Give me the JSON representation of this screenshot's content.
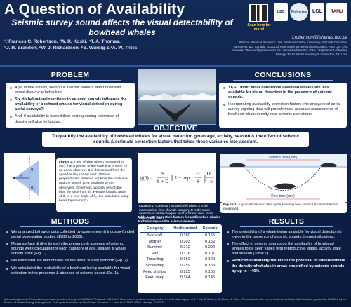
{
  "header": {
    "title": "A Question of Availability",
    "subtitle": "Seismic survey sound affects the visual detectability of bowhead whales",
    "authors": [
      "¹,²Frances C. Robertson, ³W. R. Koski, ⁴T. A. Thomas,",
      "⁵J. R. Brandon, ⁶W. J. Richardson, ⁶B. Würsig & ¹A. W. Trites"
    ],
    "qr_label": "Scan here for more!",
    "logos": [
      "UBC",
      "Fisheries",
      "LGL",
      "TAMU"
    ],
    "email": "f.robertson@fisheries.ubc.ca",
    "affiliations": "¹Marine Mammal Research Unit, Fisheries Centre, University of British Columbia, Vancouver, BC, Canada. ²LGL Ltd. environmental research associates, King City, ON, Canada. ³Greeneridge Sciences Inc., Santa Barbara CA, USA. ⁴Department of Marine Biology, Texas A&M University at Galveston, TX, USA"
  },
  "problem": {
    "heading": "PROBLEM",
    "bullets": [
      "Age, whale activity, season & seismic sounds affect bowhead whale dive-cycle behaviors.",
      "So, do behavioral reactions to seismic sounds influence the availability of bowhead whales for visual detection during aerial surveys?",
      "And, if availability is biased then corresponding estimates of density will also be biased."
    ]
  },
  "conclusions": {
    "heading": "CONCLUSIONS",
    "bullets": [
      "YES! Under most conditions bowhead whales are less available for visual detection in the presence of seismic sounds.",
      "Incorporating availability correction factors into analyses of aerial survey sighting data will provide more accurate assessments of bowhead whale density near seismic operations."
    ]
  },
  "objective": {
    "heading": "OBJECTIVE",
    "text": "To quantify the availability of bowhead whales for visual detection given age, activity, season & the effect of seismic sounds & estimate correction factors that takes these variables into account."
  },
  "figure2": {
    "caption_label": "Figure 2.",
    "caption": "Field of view (time t measured in sec) that a portion of the track line is seen by an aerial observer. It is determined from the speed of the survey craft, altitude, perpendicular distance (w) from the track line and the search area available to the observers. Observers typically search the blue pie slice from an average forward angle of θ₁ to a rear angle of θ₂. t is calculated using basic trigonometry.",
    "labels": {
      "w": "w",
      "theta1": "θ₁",
      "theta2": "θ₂"
    }
  },
  "equation": {
    "caption": "Equation 1. Correction factors [g(0)] where S is the mean surface time of whale category, D is the mean dive time of whale category and t is time in view. (from Laake et al. 1997).",
    "lhs": "g(0) =",
    "frac1_num": "S",
    "frac1_den": "S + D",
    "bracket": "1 − exp",
    "frac2_num": "−t",
    "frac2_den": "S",
    "frac3_num": "D",
    "frac3_den": "S + D"
  },
  "figure1": {
    "caption_label": "Figure 1.",
    "caption": "A typical bowhead dive cycle showing how surface & dive times are measured.",
    "surface_label": "Surface time (min)",
    "dive_label": "Dive time (min)"
  },
  "methods": {
    "heading": "METHODS",
    "bullets": [
      "We analyzed behavior data collected by government & industry-funded aerial observation studies (1980 to 2000).",
      "Mean surface & dive times in the presence & absence of seismic sounds were calculated for each category of age, season & whale activity state (Fig. 1).",
      "We estimated the field of view for the aerial survey platform (Fig. 2).",
      "We calculated the probability of a bowhead being available for visual detection in the presence & absence of seismic sound (Eq. 1)."
    ]
  },
  "table1": {
    "caption": "Table 1. g0) Correction factors for undisturbed whales & whales exposed to seismic sounds.",
    "columns": [
      "Category",
      "Undisturbed",
      "Seismic"
    ],
    "rows": [
      [
        "Non-calf",
        "0.180",
        "0.155"
      ],
      [
        "Mother",
        "0.203",
        "0.152"
      ],
      [
        "Summer",
        "0.210",
        "0.202"
      ],
      [
        "Fall",
        "0.176",
        "0.107"
      ],
      [
        "Travelling",
        "0.152",
        "0.120"
      ],
      [
        "Socializing",
        "0.259",
        "0.163"
      ],
      [
        "Feed shallow",
        "0.225",
        "0.185"
      ],
      [
        "Feed deep",
        "0.164",
        "0.145"
      ]
    ]
  },
  "results": {
    "heading": "RESULTS",
    "bullets": [
      "The probability of a whale being available for visual detection is lower in the presence of seismic sounds, in most situations.",
      "The effect of seismic sounds on the availability of bowhead whales to be seen varies with reproductive status, activity state and season (Table 1).",
      "Reduced availability results in the potential to underestimate the density of whales in areas ensonified by seismic sounds by up to ~ 40%."
    ]
  },
  "footer": {
    "text": "Acknowledgements: Financial support was provided through an NSERC-IPS Award, LGL Ltd. F. Robertson is grateful for supervision & intellectual support of J. Ford, S. Raverty, S. Moore, B. Stern. Permission for the use of bowhead behavior data has been granted by BOEM & by the Bureau of Ocean Energy Management. Dive-cycle illustration by Uko Gorter. Equation 1: Laake et al. 1997. Willdl. Manage. 61:63-75."
  }
}
